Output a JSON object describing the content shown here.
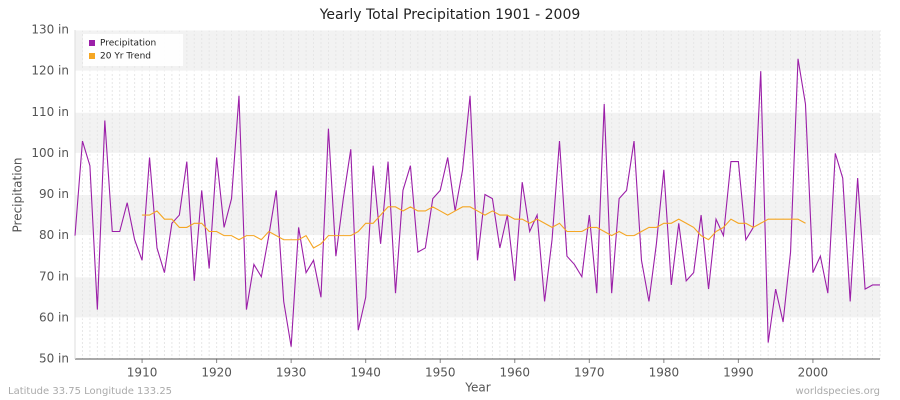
{
  "chart_data": {
    "type": "line",
    "title": "Yearly Total Precipitation 1901 - 2009",
    "x_label": "Year",
    "y_label": "Precipitation",
    "footer_left": "Latitude 33.75 Longitude 133.25",
    "footer_right": "worldspecies.org",
    "x": [
      1901,
      1902,
      1903,
      1904,
      1905,
      1906,
      1907,
      1908,
      1909,
      1910,
      1911,
      1912,
      1913,
      1914,
      1915,
      1916,
      1917,
      1918,
      1919,
      1920,
      1921,
      1922,
      1923,
      1924,
      1925,
      1926,
      1927,
      1928,
      1929,
      1930,
      1931,
      1932,
      1933,
      1934,
      1935,
      1936,
      1937,
      1938,
      1939,
      1940,
      1941,
      1942,
      1943,
      1944,
      1945,
      1946,
      1947,
      1948,
      1949,
      1950,
      1951,
      1952,
      1953,
      1954,
      1955,
      1956,
      1957,
      1958,
      1959,
      1960,
      1961,
      1962,
      1963,
      1964,
      1965,
      1966,
      1967,
      1968,
      1969,
      1970,
      1971,
      1972,
      1973,
      1974,
      1975,
      1976,
      1977,
      1978,
      1979,
      1980,
      1981,
      1982,
      1983,
      1984,
      1985,
      1986,
      1987,
      1988,
      1989,
      1990,
      1991,
      1992,
      1993,
      1994,
      1995,
      1996,
      1997,
      1998,
      1999,
      2000,
      2001,
      2002,
      2003,
      2004,
      2005,
      2006,
      2007,
      2008,
      2009
    ],
    "series": [
      {
        "name": "Precipitation",
        "color": "#9b1fa8",
        "values": [
          80,
          103,
          97,
          62,
          108,
          81,
          81,
          88,
          79,
          74,
          99,
          77,
          71,
          83,
          85,
          98,
          69,
          91,
          72,
          99,
          82,
          89,
          114,
          62,
          73,
          70,
          80,
          91,
          64,
          53,
          82,
          71,
          74,
          65,
          106,
          75,
          89,
          101,
          57,
          65,
          97,
          78,
          98,
          66,
          91,
          97,
          76,
          77,
          89,
          91,
          99,
          86,
          96,
          114,
          74,
          90,
          89,
          77,
          85,
          69,
          93,
          81,
          85,
          64,
          79,
          103,
          75,
          73,
          70,
          85,
          66,
          112,
          66,
          89,
          91,
          103,
          74,
          64,
          78,
          96,
          68,
          83,
          69,
          71,
          85,
          67,
          84,
          80,
          98,
          98,
          79,
          82,
          120,
          54,
          67,
          59,
          76,
          123,
          112,
          71,
          75,
          66,
          100,
          94,
          64,
          94,
          67,
          68,
          68
        ]
      },
      {
        "name": "20 Yr Trend",
        "color": "#f5a623",
        "values": [
          null,
          null,
          null,
          null,
          null,
          null,
          null,
          null,
          null,
          85,
          85,
          86,
          84,
          84,
          82,
          82,
          83,
          83,
          81,
          81,
          80,
          80,
          79,
          80,
          80,
          79,
          81,
          80,
          79,
          79,
          79,
          80,
          77,
          78,
          80,
          80,
          80,
          80,
          81,
          83,
          83,
          85,
          87,
          87,
          86,
          87,
          86,
          86,
          87,
          86,
          85,
          86,
          87,
          87,
          86,
          85,
          86,
          85,
          85,
          84,
          84,
          83,
          84,
          83,
          82,
          83,
          81,
          81,
          81,
          82,
          82,
          81,
          80,
          81,
          80,
          80,
          81,
          82,
          82,
          83,
          83,
          84,
          83,
          82,
          80,
          79,
          81,
          82,
          84,
          83,
          83,
          82,
          83,
          84,
          84,
          84,
          84,
          84,
          83,
          null,
          null,
          null,
          null,
          null,
          null,
          null,
          null,
          null,
          null
        ]
      }
    ],
    "xlim": [
      1901,
      2009
    ],
    "xticks": [
      1910,
      1920,
      1930,
      1940,
      1950,
      1960,
      1970,
      1980,
      1990,
      2000
    ],
    "ylim": [
      50,
      130
    ],
    "yticks": [
      {
        "value": 50,
        "label": "50 in"
      },
      {
        "value": 60,
        "label": "60 in"
      },
      {
        "value": 70,
        "label": "70 in"
      },
      {
        "value": 80,
        "label": "80 in"
      },
      {
        "value": 90,
        "label": "90 in"
      },
      {
        "value": 100,
        "label": "100 in"
      },
      {
        "value": 110,
        "label": "110 in"
      },
      {
        "value": 120,
        "label": "120 in"
      },
      {
        "value": 130,
        "label": "130 in"
      }
    ],
    "grid": true,
    "legend": "top-left"
  }
}
